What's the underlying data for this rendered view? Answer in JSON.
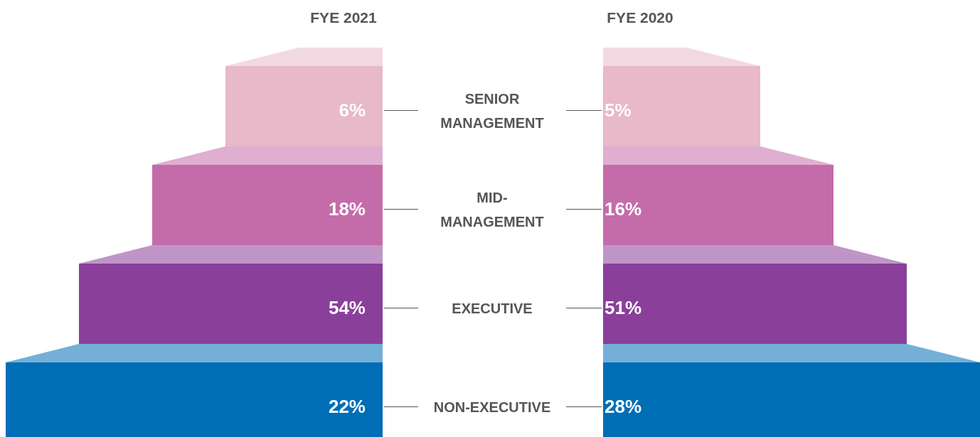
{
  "chart_data": {
    "type": "other",
    "categories": [
      "SENIOR MANAGEMENT",
      "MID-MANAGEMENT",
      "EXECUTIVE",
      "NON-EXECUTIVE"
    ],
    "series": [
      {
        "name": "FYE 2021",
        "values": [
          6,
          18,
          54,
          22
        ],
        "value_labels": [
          "6%",
          "18%",
          "54%",
          "22%"
        ],
        "colors": [
          "#e8b9c8",
          "#c46caa",
          "#8a3f9a",
          "#006eb6"
        ]
      },
      {
        "name": "FYE 2020",
        "values": [
          5,
          16,
          51,
          28
        ],
        "value_labels": [
          "5%",
          "16%",
          "51%",
          "28%"
        ],
        "colors": [
          "#e8b9c8",
          "#c46caa",
          "#8a3f9a",
          "#006eb6"
        ]
      }
    ]
  }
}
